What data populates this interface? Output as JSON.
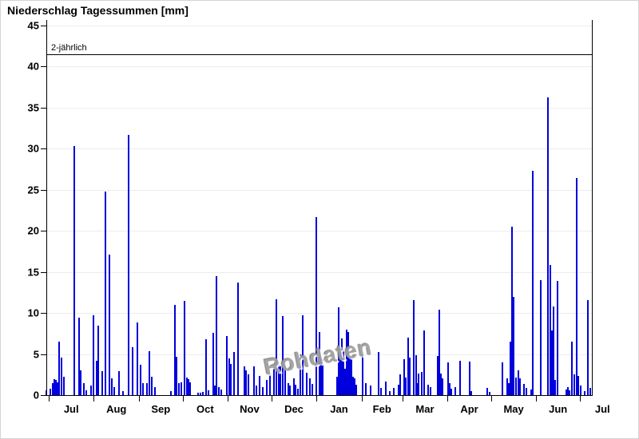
{
  "title": "Niederschlag Tagessummen [mm]",
  "watermark": "Rohdaten",
  "colors": {
    "bar": "#0000dd",
    "grid": "#ececec",
    "axis": "#000000",
    "watermark": "#a0a0a0"
  },
  "chart_data": {
    "type": "bar",
    "title": "Niederschlag Tagessummen [mm]",
    "ylim": [
      0,
      45
    ],
    "y_ticks": [
      0,
      5,
      10,
      15,
      20,
      25,
      30,
      35,
      40,
      45
    ],
    "grid": true,
    "threshold": {
      "label": "2-jährlich",
      "value": 41.5
    },
    "x_axis": {
      "description": "days, 0 = 1 Jul, through 365 = following 1 Jul",
      "month_tick_days": [
        0,
        31,
        62,
        92,
        123,
        153,
        184,
        215,
        243,
        274,
        304,
        335,
        365
      ],
      "month_label_days": [
        15.5,
        46.5,
        77,
        107.5,
        138,
        168.5,
        199.5,
        229,
        258.5,
        289,
        319.5,
        350,
        380.5
      ],
      "month_labels": [
        "Jul",
        "Aug",
        "Sep",
        "Oct",
        "Nov",
        "Dec",
        "Jan",
        "Feb",
        "Mar",
        "Apr",
        "May",
        "Jun",
        "Jul"
      ]
    },
    "bars": [
      [
        -1.5,
        0.6
      ],
      [
        1.1,
        0.8
      ],
      [
        2.5,
        1.5
      ],
      [
        3.6,
        1.9
      ],
      [
        4.7,
        1.8
      ],
      [
        5.8,
        1.6
      ],
      [
        7.1,
        6.5
      ],
      [
        8.8,
        4.6
      ],
      [
        10.4,
        2.2
      ],
      [
        17.6,
        30.3
      ],
      [
        20.9,
        9.4
      ],
      [
        22,
        3
      ],
      [
        24.2,
        1.5
      ],
      [
        25.8,
        0.6
      ],
      [
        29.1,
        1.2
      ],
      [
        31,
        9.7
      ],
      [
        32.7,
        4.2
      ],
      [
        34.3,
        8.5
      ],
      [
        36.8,
        2.9
      ],
      [
        39,
        24.8
      ],
      [
        41.7,
        17.1
      ],
      [
        43.4,
        2
      ],
      [
        45,
        1
      ],
      [
        48.3,
        2.9
      ],
      [
        51,
        0.5
      ],
      [
        54.9,
        31.7
      ],
      [
        57.4,
        5.8
      ],
      [
        60.9,
        8.8
      ],
      [
        63.1,
        3.7
      ],
      [
        64.8,
        1.5
      ],
      [
        67.3,
        1.5
      ],
      [
        69.2,
        5.3
      ],
      [
        70.8,
        2.2
      ],
      [
        72.8,
        1
      ],
      [
        83.8,
        0.5
      ],
      [
        86.9,
        11
      ],
      [
        87.9,
        4.7
      ],
      [
        89.5,
        1.5
      ],
      [
        91.1,
        1.6
      ],
      [
        93.3,
        11.5
      ],
      [
        94.7,
        2.1
      ],
      [
        96,
        1.9
      ],
      [
        97.1,
        1.6
      ],
      [
        102.5,
        0.3
      ],
      [
        104.3,
        0.3
      ],
      [
        105.9,
        0.4
      ],
      [
        108.3,
        6.8
      ],
      [
        109.8,
        0.6
      ],
      [
        113.1,
        7.6
      ],
      [
        114.2,
        1.2
      ],
      [
        115.3,
        14.5
      ],
      [
        117.1,
        1
      ],
      [
        118.5,
        0.7
      ],
      [
        122.6,
        7.2
      ],
      [
        123.8,
        4.5
      ],
      [
        124.9,
        3.8
      ],
      [
        127.5,
        5.2
      ],
      [
        129.9,
        13.7
      ],
      [
        134.5,
        3.5
      ],
      [
        135.8,
        3
      ],
      [
        137.2,
        2.5
      ],
      [
        140.9,
        3.5
      ],
      [
        142.7,
        1.2
      ],
      [
        145.1,
        2.3
      ],
      [
        147.1,
        1
      ],
      [
        149.8,
        1.8
      ],
      [
        152,
        2.5
      ],
      [
        154.9,
        3.2
      ],
      [
        156.4,
        11.7
      ],
      [
        158.2,
        4
      ],
      [
        159.2,
        3.5
      ],
      [
        161,
        9.6
      ],
      [
        162.5,
        3.7
      ],
      [
        164.7,
        1.5
      ],
      [
        165.8,
        1.2
      ],
      [
        168.3,
        2
      ],
      [
        169.6,
        1.3
      ],
      [
        171.2,
        0.8
      ],
      [
        172.9,
        5
      ],
      [
        174.7,
        9.7
      ],
      [
        177.4,
        2.7
      ],
      [
        179.3,
        2
      ],
      [
        181.1,
        1.4
      ],
      [
        184.1,
        21.7
      ],
      [
        185.8,
        7.7
      ],
      [
        187.2,
        4.6
      ],
      [
        188.2,
        4.4
      ],
      [
        198.1,
        2.2
      ],
      [
        199.2,
        10.7
      ],
      [
        200.3,
        5.3
      ],
      [
        201.4,
        6.9
      ],
      [
        202.5,
        5.5
      ],
      [
        203.6,
        3.2
      ],
      [
        204.7,
        8
      ],
      [
        205.8,
        7.7
      ],
      [
        206.9,
        4.6
      ],
      [
        208,
        4.4
      ],
      [
        209.1,
        2.2
      ],
      [
        210.2,
        2
      ],
      [
        211.3,
        1.3
      ],
      [
        215.7,
        5.1
      ],
      [
        217.9,
        1.5
      ],
      [
        221.2,
        1.2
      ],
      [
        226.8,
        5.2
      ],
      [
        228.1,
        0.9
      ],
      [
        231.4,
        1.7
      ],
      [
        234.2,
        0.5
      ],
      [
        236.9,
        0.9
      ],
      [
        240.4,
        1.3
      ],
      [
        241.5,
        2.5
      ],
      [
        244.2,
        4.4
      ],
      [
        245.3,
        2.1
      ],
      [
        247,
        7
      ],
      [
        248.1,
        4.6
      ],
      [
        250.8,
        11.6
      ],
      [
        252.2,
        4.9
      ],
      [
        253.3,
        1.5
      ],
      [
        254.1,
        2.6
      ],
      [
        256.3,
        2.8
      ],
      [
        258.2,
        7.9
      ],
      [
        260.7,
        1.3
      ],
      [
        262.3,
        1
      ],
      [
        267.3,
        4.8
      ],
      [
        268.4,
        10.4
      ],
      [
        269.5,
        2.6
      ],
      [
        270.6,
        2
      ],
      [
        274.4,
        4
      ],
      [
        275.5,
        1.5
      ],
      [
        276.6,
        0.8
      ],
      [
        279.4,
        1
      ],
      [
        282.7,
        4.2
      ],
      [
        289.2,
        4.1
      ],
      [
        290.3,
        0.5
      ],
      [
        301.3,
        0.9
      ],
      [
        302.7,
        0.4
      ],
      [
        312,
        4
      ],
      [
        315.2,
        2
      ],
      [
        316.2,
        1.5
      ],
      [
        317.3,
        6.5
      ],
      [
        318.4,
        20.5
      ],
      [
        319.6,
        12
      ],
      [
        321.1,
        2.1
      ],
      [
        322.6,
        3
      ],
      [
        323.8,
        2
      ],
      [
        326.6,
        1.4
      ],
      [
        328,
        0.9
      ],
      [
        331.5,
        0.7
      ],
      [
        332.5,
        27.3
      ],
      [
        338,
        14
      ],
      [
        343,
        36.3
      ],
      [
        344.5,
        15.8
      ],
      [
        345.7,
        7.9
      ],
      [
        347,
        10.8
      ],
      [
        348.2,
        1.8
      ],
      [
        349.7,
        13.9
      ],
      [
        355.8,
        0.7
      ],
      [
        356.7,
        1
      ],
      [
        357.8,
        0.6
      ],
      [
        359.5,
        6.5
      ],
      [
        361.1,
        2.5
      ],
      [
        362.6,
        26.4
      ],
      [
        363.7,
        2.3
      ],
      [
        365.5,
        1.2
      ],
      [
        368.2,
        0.5
      ],
      [
        370.4,
        11.6
      ],
      [
        372.1,
        0.9
      ]
    ]
  }
}
